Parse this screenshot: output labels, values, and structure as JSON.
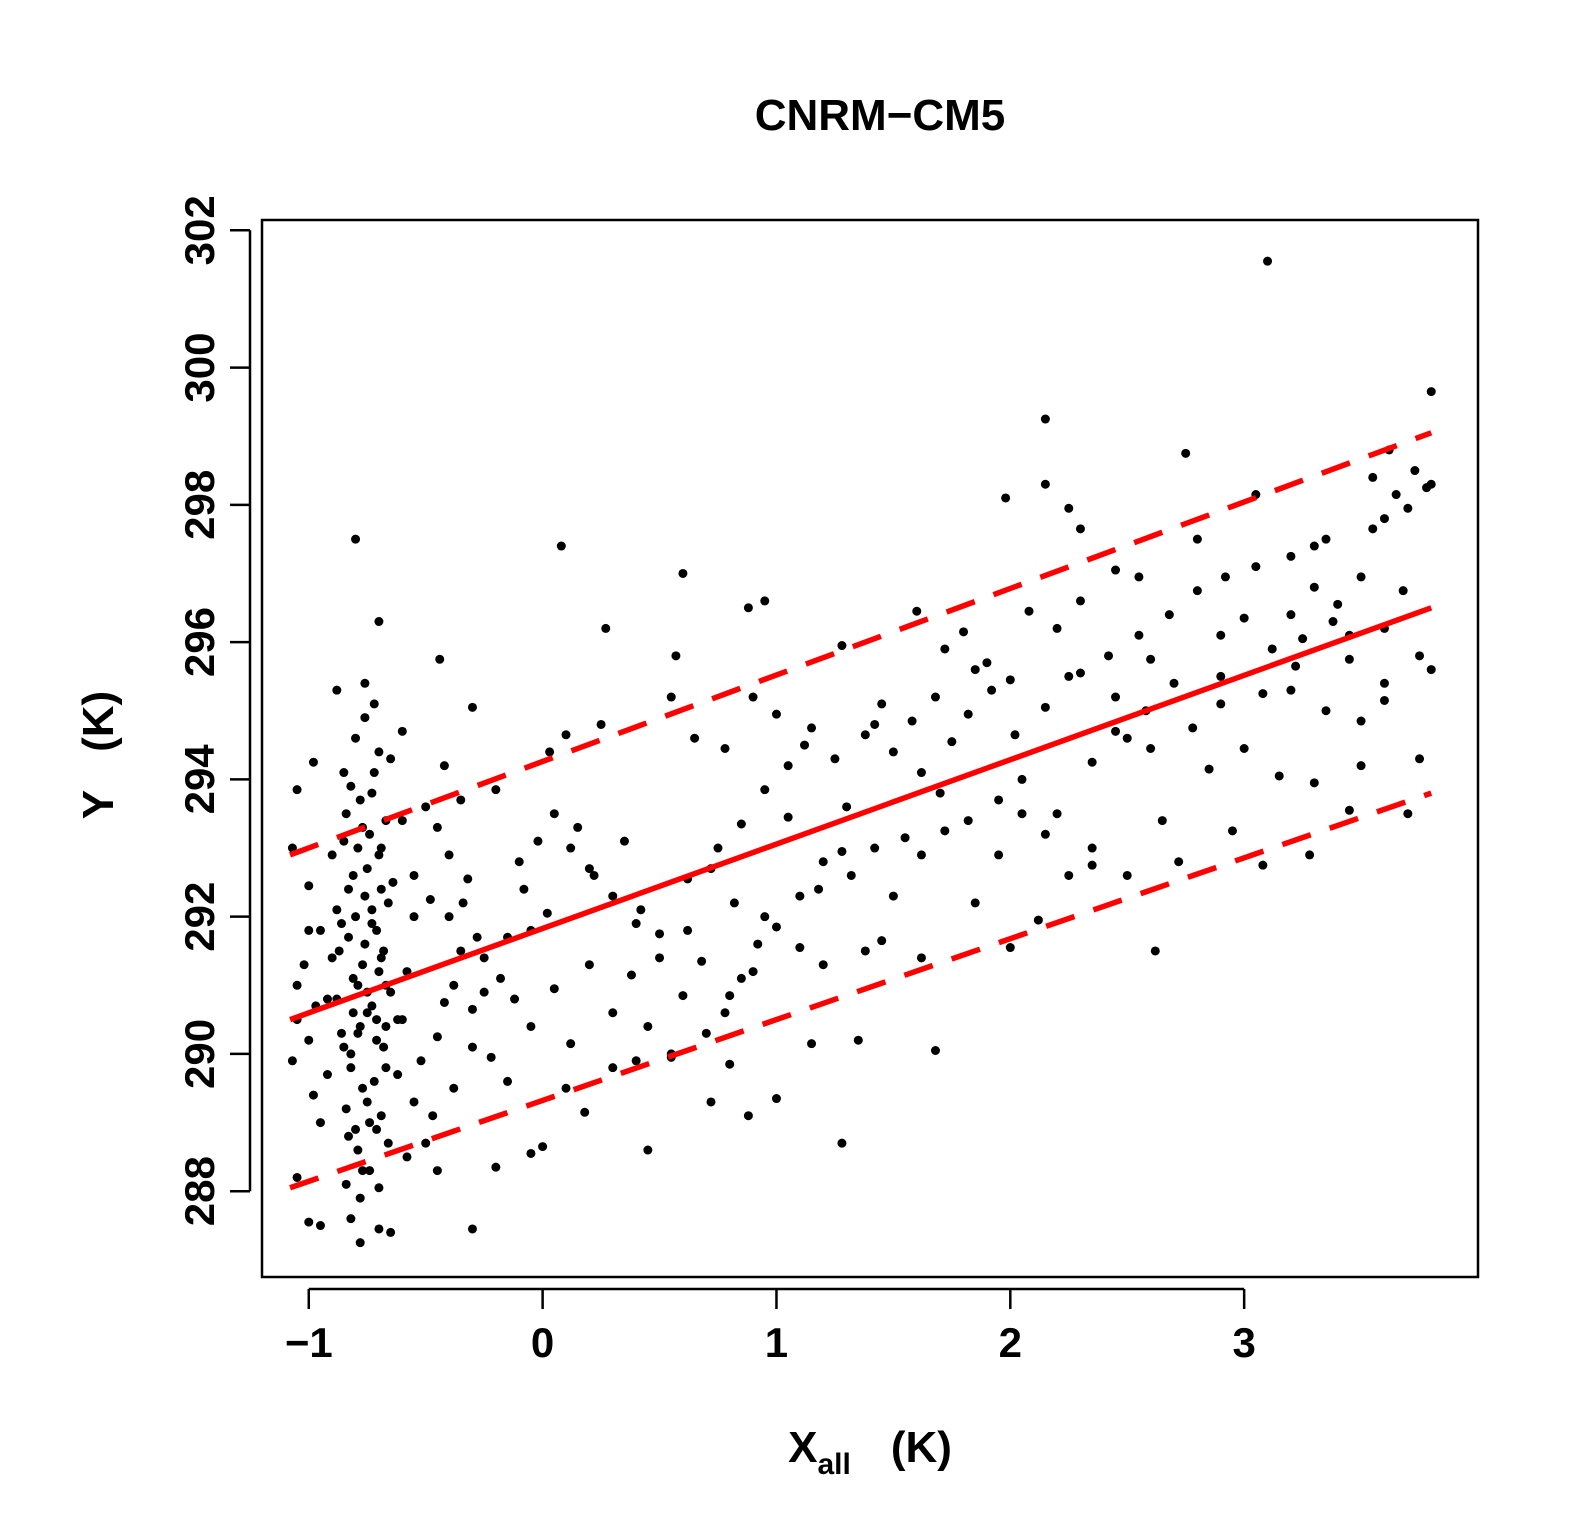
{
  "chart_data": {
    "type": "scatter",
    "title": "CNRM−CM5",
    "xlabel": {
      "main": "X",
      "subscript": "all",
      "unit": "(K)"
    },
    "ylabel": {
      "main": "Y",
      "unit": "(K)"
    },
    "xlim": [
      -1.2,
      4.0
    ],
    "ylim": [
      286.75,
      302.15
    ],
    "x_ticks": [
      -1,
      0,
      1,
      2,
      3
    ],
    "x_tick_labels": [
      "−1",
      "0",
      "1",
      "2",
      "3"
    ],
    "y_ticks": [
      288,
      290,
      292,
      294,
      296,
      298,
      300,
      302
    ],
    "y_tick_labels": [
      "288",
      "290",
      "292",
      "294",
      "296",
      "298",
      "300",
      "302"
    ],
    "grid": false,
    "legend": "none",
    "colors": {
      "points": "#000000",
      "fit": "#ff0000"
    },
    "fit_line": {
      "style": "solid",
      "x": [
        -1.08,
        3.8
      ],
      "y": [
        290.5,
        296.5
      ]
    },
    "band_upper": {
      "style": "dashed",
      "x": [
        -1.08,
        3.8
      ],
      "y": [
        292.9,
        299.05
      ]
    },
    "band_lower": {
      "style": "dashed",
      "x": [
        -1.08,
        3.8
      ],
      "y": [
        288.05,
        293.8
      ]
    },
    "points": [
      [
        3.1,
        301.55
      ],
      [
        3.8,
        299.65
      ],
      [
        2.15,
        299.25
      ],
      [
        2.75,
        298.75
      ],
      [
        2.15,
        298.3
      ],
      [
        1.98,
        298.1
      ],
      [
        3.05,
        298.15
      ],
      [
        3.73,
        298.5
      ],
      [
        3.8,
        298.3
      ],
      [
        -0.8,
        297.5
      ],
      [
        0.08,
        297.4
      ],
      [
        0.6,
        297.0
      ],
      [
        0.27,
        296.2
      ],
      [
        0.95,
        296.6
      ],
      [
        0.88,
        296.5
      ],
      [
        -0.7,
        296.3
      ],
      [
        0.57,
        295.8
      ],
      [
        -0.44,
        295.75
      ],
      [
        3.5,
        296.95
      ],
      [
        3.6,
        297.8
      ],
      [
        3.3,
        297.4
      ],
      [
        2.3,
        297.65
      ],
      [
        2.55,
        296.95
      ],
      [
        2.8,
        297.5
      ],
      [
        -0.88,
        295.3
      ],
      [
        -0.76,
        295.4
      ],
      [
        -0.3,
        295.05
      ],
      [
        0.55,
        295.2
      ],
      [
        0.9,
        295.2
      ],
      [
        1.28,
        295.95
      ],
      [
        1.0,
        294.95
      ],
      [
        1.15,
        294.75
      ],
      [
        1.42,
        294.8
      ],
      [
        1.72,
        295.9
      ],
      [
        1.85,
        295.6
      ],
      [
        2.08,
        296.45
      ],
      [
        -1.05,
        293.85
      ],
      [
        -0.98,
        294.25
      ],
      [
        -0.85,
        294.1
      ],
      [
        -0.6,
        294.7
      ],
      [
        -0.42,
        294.2
      ],
      [
        -0.35,
        293.7
      ],
      [
        -0.2,
        293.85
      ],
      [
        0.03,
        294.4
      ],
      [
        0.1,
        294.65
      ],
      [
        0.25,
        294.8
      ],
      [
        0.65,
        294.6
      ],
      [
        0.78,
        294.45
      ],
      [
        1.3,
        293.6
      ],
      [
        1.5,
        294.4
      ],
      [
        1.62,
        294.1
      ],
      [
        1.75,
        294.55
      ],
      [
        2.25,
        295.5
      ],
      [
        2.45,
        295.2
      ],
      [
        2.6,
        295.75
      ],
      [
        2.9,
        295.5
      ],
      [
        3.2,
        295.3
      ],
      [
        3.45,
        295.75
      ],
      [
        3.6,
        295.4
      ],
      [
        3.8,
        295.6
      ],
      [
        -1.07,
        293.0
      ],
      [
        -1.0,
        292.45
      ],
      [
        -0.95,
        291.8
      ],
      [
        -0.9,
        292.9
      ],
      [
        -0.6,
        293.4
      ],
      [
        -0.55,
        292.6
      ],
      [
        -0.48,
        292.25
      ],
      [
        -0.4,
        292.0
      ],
      [
        -0.32,
        292.55
      ],
      [
        -0.25,
        291.4
      ],
      [
        -0.1,
        292.8
      ],
      [
        -0.05,
        291.8
      ],
      [
        0.02,
        292.05
      ],
      [
        0.15,
        293.3
      ],
      [
        0.22,
        292.6
      ],
      [
        0.35,
        293.1
      ],
      [
        0.42,
        292.1
      ],
      [
        0.5,
        291.75
      ],
      [
        0.62,
        292.55
      ],
      [
        0.75,
        293.0
      ],
      [
        0.82,
        292.2
      ],
      [
        0.95,
        292.0
      ],
      [
        1.05,
        293.45
      ],
      [
        1.18,
        292.4
      ],
      [
        1.28,
        292.95
      ],
      [
        1.38,
        291.5
      ],
      [
        1.5,
        292.3
      ],
      [
        1.62,
        292.9
      ],
      [
        1.72,
        293.25
      ],
      [
        1.95,
        293.7
      ],
      [
        2.05,
        294.0
      ],
      [
        2.2,
        293.5
      ],
      [
        2.35,
        294.25
      ],
      [
        2.5,
        294.6
      ],
      [
        2.65,
        293.4
      ],
      [
        2.85,
        294.15
      ],
      [
        3.0,
        294.45
      ],
      [
        3.15,
        294.05
      ],
      [
        3.3,
        293.95
      ],
      [
        3.5,
        294.2
      ],
      [
        3.7,
        293.5
      ],
      [
        3.75,
        294.3
      ],
      [
        -1.05,
        291.0
      ],
      [
        -1.0,
        290.2
      ],
      [
        -0.98,
        289.4
      ],
      [
        -0.92,
        290.8
      ],
      [
        -0.6,
        290.5
      ],
      [
        -0.52,
        289.9
      ],
      [
        -0.45,
        290.25
      ],
      [
        -0.38,
        291.0
      ],
      [
        -0.3,
        290.65
      ],
      [
        -0.22,
        289.95
      ],
      [
        -0.12,
        290.8
      ],
      [
        -0.05,
        290.4
      ],
      [
        0.05,
        290.95
      ],
      [
        0.12,
        290.15
      ],
      [
        0.2,
        291.3
      ],
      [
        0.3,
        290.6
      ],
      [
        0.38,
        291.15
      ],
      [
        0.45,
        290.4
      ],
      [
        0.55,
        290.0
      ],
      [
        0.68,
        291.35
      ],
      [
        0.8,
        290.85
      ],
      [
        0.9,
        291.2
      ],
      [
        1.1,
        291.55
      ],
      [
        1.2,
        291.3
      ],
      [
        1.35,
        290.2
      ],
      [
        1.45,
        291.65
      ],
      [
        1.62,
        291.4
      ],
      [
        1.85,
        292.2
      ],
      [
        2.0,
        291.55
      ],
      [
        2.12,
        291.95
      ],
      [
        2.35,
        292.75
      ],
      [
        2.5,
        292.6
      ],
      [
        2.62,
        291.5
      ],
      [
        2.72,
        292.8
      ],
      [
        2.95,
        293.25
      ],
      [
        3.08,
        292.75
      ],
      [
        3.28,
        292.9
      ],
      [
        3.45,
        293.55
      ],
      [
        -1.05,
        288.2
      ],
      [
        -1.0,
        287.55
      ],
      [
        -0.95,
        287.5
      ],
      [
        -0.82,
        287.6
      ],
      [
        -0.78,
        287.25
      ],
      [
        -0.7,
        287.45
      ],
      [
        -0.65,
        287.4
      ],
      [
        -0.45,
        288.3
      ],
      [
        -0.3,
        287.45
      ],
      [
        -0.2,
        288.35
      ],
      [
        -0.05,
        288.55
      ],
      [
        0.0,
        288.65
      ],
      [
        0.18,
        289.15
      ],
      [
        0.3,
        289.8
      ],
      [
        0.45,
        288.6
      ],
      [
        0.55,
        289.95
      ],
      [
        0.72,
        289.3
      ],
      [
        0.88,
        289.1
      ],
      [
        1.0,
        289.35
      ],
      [
        1.28,
        288.7
      ],
      [
        1.68,
        290.05
      ],
      [
        -0.15,
        289.6
      ],
      [
        0.1,
        289.5
      ],
      [
        0.4,
        289.9
      ],
      [
        0.8,
        289.85
      ],
      [
        1.15,
        290.15
      ],
      [
        0.62,
        291.8
      ],
      [
        0.72,
        292.7
      ],
      [
        0.85,
        293.35
      ],
      [
        0.95,
        293.85
      ],
      [
        1.05,
        294.2
      ],
      [
        1.12,
        294.5
      ],
      [
        1.25,
        294.3
      ],
      [
        1.38,
        294.65
      ],
      [
        1.45,
        295.1
      ],
      [
        1.58,
        294.85
      ],
      [
        1.68,
        295.2
      ],
      [
        1.82,
        294.95
      ],
      [
        1.92,
        295.3
      ],
      [
        2.02,
        294.65
      ],
      [
        2.15,
        295.05
      ],
      [
        2.3,
        295.55
      ],
      [
        2.42,
        295.8
      ],
      [
        2.55,
        296.1
      ],
      [
        2.68,
        296.4
      ],
      [
        2.8,
        296.75
      ],
      [
        2.92,
        296.95
      ],
      [
        3.05,
        297.1
      ],
      [
        3.2,
        297.25
      ],
      [
        3.35,
        297.5
      ],
      [
        3.55,
        297.65
      ],
      [
        3.7,
        297.95
      ],
      [
        3.78,
        298.25
      ],
      [
        3.55,
        298.4
      ],
      [
        3.62,
        298.8
      ],
      [
        3.65,
        298.15
      ],
      [
        2.25,
        297.95
      ],
      [
        2.45,
        297.05
      ],
      [
        2.2,
        296.2
      ],
      [
        2.3,
        296.6
      ],
      [
        1.6,
        296.45
      ],
      [
        1.8,
        296.15
      ],
      [
        1.9,
        295.7
      ],
      [
        2.0,
        295.45
      ],
      [
        3.38,
        296.3
      ],
      [
        3.25,
        296.05
      ],
      [
        3.4,
        296.55
      ],
      [
        3.0,
        296.35
      ],
      [
        2.9,
        296.1
      ],
      [
        3.12,
        295.9
      ],
      [
        2.7,
        295.4
      ],
      [
        2.58,
        295.0
      ],
      [
        2.45,
        294.7
      ],
      [
        2.6,
        294.45
      ],
      [
        2.78,
        294.75
      ],
      [
        2.9,
        295.1
      ],
      [
        3.08,
        295.25
      ],
      [
        3.22,
        295.65
      ],
      [
        3.35,
        295.0
      ],
      [
        3.5,
        294.85
      ],
      [
        3.6,
        295.15
      ],
      [
        3.75,
        295.8
      ],
      [
        3.6,
        296.2
      ],
      [
        3.68,
        296.75
      ],
      [
        3.45,
        296.1
      ],
      [
        3.3,
        296.8
      ],
      [
        3.2,
        296.4
      ],
      [
        2.35,
        293.0
      ],
      [
        2.25,
        292.6
      ],
      [
        2.15,
        293.2
      ],
      [
        2.05,
        293.5
      ],
      [
        1.95,
        292.9
      ],
      [
        1.82,
        293.4
      ],
      [
        1.7,
        293.8
      ],
      [
        1.55,
        293.15
      ],
      [
        1.42,
        293.0
      ],
      [
        1.32,
        292.6
      ],
      [
        1.2,
        292.8
      ],
      [
        1.1,
        292.3
      ],
      [
        1.0,
        291.85
      ],
      [
        0.92,
        291.6
      ],
      [
        0.85,
        291.1
      ],
      [
        0.78,
        290.6
      ],
      [
        0.7,
        290.3
      ],
      [
        0.6,
        290.85
      ],
      [
        0.5,
        291.4
      ],
      [
        0.4,
        291.9
      ],
      [
        0.3,
        292.3
      ],
      [
        0.2,
        292.7
      ],
      [
        0.12,
        293.0
      ],
      [
        0.05,
        293.5
      ],
      [
        -0.02,
        293.1
      ],
      [
        -0.08,
        292.4
      ],
      [
        -0.15,
        291.7
      ],
      [
        -0.18,
        291.1
      ],
      [
        -0.28,
        291.7
      ],
      [
        -0.34,
        292.2
      ],
      [
        -0.4,
        292.9
      ],
      [
        -0.45,
        293.3
      ],
      [
        -0.5,
        293.6
      ],
      [
        -0.55,
        292.0
      ],
      [
        -0.58,
        291.2
      ],
      [
        -0.62,
        290.5
      ],
      [
        -0.55,
        289.3
      ],
      [
        -0.5,
        288.7
      ],
      [
        -0.58,
        288.5
      ],
      [
        -0.62,
        289.7
      ],
      [
        -0.47,
        289.1
      ],
      [
        -0.38,
        289.5
      ],
      [
        -0.3,
        290.1
      ],
      [
        -0.25,
        290.9
      ],
      [
        -0.35,
        291.5
      ],
      [
        -0.42,
        290.75
      ],
      [
        -1.07,
        289.9
      ],
      [
        -1.05,
        290.5
      ],
      [
        -1.02,
        291.3
      ],
      [
        -1.0,
        291.8
      ],
      [
        -0.97,
        290.7
      ],
      [
        -0.95,
        289.0
      ],
      [
        -0.92,
        289.7
      ],
      [
        -0.9,
        291.4
      ],
      [
        -0.88,
        292.1
      ],
      [
        -0.86,
        290.3
      ],
      [
        -0.85,
        293.1
      ],
      [
        -0.84,
        289.2
      ],
      [
        -0.83,
        291.7
      ],
      [
        -0.82,
        290.0
      ],
      [
        -0.81,
        292.6
      ],
      [
        -0.8,
        288.9
      ],
      [
        -0.79,
        291.0
      ],
      [
        -0.78,
        293.7
      ],
      [
        -0.77,
        289.5
      ],
      [
        -0.76,
        292.3
      ],
      [
        -0.75,
        290.6
      ],
      [
        -0.74,
        288.3
      ],
      [
        -0.73,
        291.9
      ],
      [
        -0.72,
        294.1
      ],
      [
        -0.71,
        290.2
      ],
      [
        -0.7,
        292.9
      ],
      [
        -0.69,
        289.1
      ],
      [
        -0.68,
        291.5
      ],
      [
        -0.67,
        293.4
      ],
      [
        -0.66,
        288.7
      ],
      [
        -0.65,
        290.9
      ],
      [
        -0.64,
        292.5
      ],
      [
        -0.88,
        290.8
      ],
      [
        -0.86,
        291.9
      ],
      [
        -0.84,
        293.5
      ],
      [
        -0.82,
        289.8
      ],
      [
        -0.8,
        292.0
      ],
      [
        -0.78,
        290.4
      ],
      [
        -0.76,
        291.6
      ],
      [
        -0.74,
        293.2
      ],
      [
        -0.72,
        289.6
      ],
      [
        -0.7,
        291.2
      ],
      [
        -0.68,
        290.1
      ],
      [
        -0.66,
        292.2
      ],
      [
        -0.8,
        294.6
      ],
      [
        -0.76,
        294.9
      ],
      [
        -0.72,
        295.1
      ],
      [
        -0.7,
        294.4
      ],
      [
        -0.65,
        294.3
      ],
      [
        -0.84,
        288.1
      ],
      [
        -0.78,
        287.9
      ],
      [
        -0.7,
        288.05
      ],
      [
        -0.82,
        293.9
      ],
      [
        -0.74,
        289.0
      ],
      [
        -0.79,
        290.3
      ],
      [
        -0.77,
        291.3
      ],
      [
        -0.75,
        292.7
      ],
      [
        -0.73,
        290.7
      ],
      [
        -0.71,
        291.8
      ],
      [
        -0.69,
        293.0
      ],
      [
        -0.67,
        290.4
      ],
      [
        -0.83,
        292.4
      ],
      [
        -0.81,
        291.1
      ],
      [
        -0.79,
        288.6
      ],
      [
        -0.77,
        293.3
      ],
      [
        -0.75,
        289.3
      ],
      [
        -0.73,
        292.1
      ],
      [
        -0.71,
        288.9
      ],
      [
        -0.69,
        291.4
      ],
      [
        -0.67,
        289.8
      ],
      [
        -0.87,
        291.5
      ],
      [
        -0.85,
        290.1
      ],
      [
        -0.83,
        288.8
      ],
      [
        -0.81,
        290.6
      ],
      [
        -0.79,
        293.0
      ],
      [
        -0.77,
        288.3
      ],
      [
        -0.75,
        290.9
      ],
      [
        -0.73,
        293.8
      ],
      [
        -0.71,
        290.5
      ],
      [
        -0.69,
        292.4
      ],
      [
        -0.67,
        291.0
      ]
    ]
  }
}
